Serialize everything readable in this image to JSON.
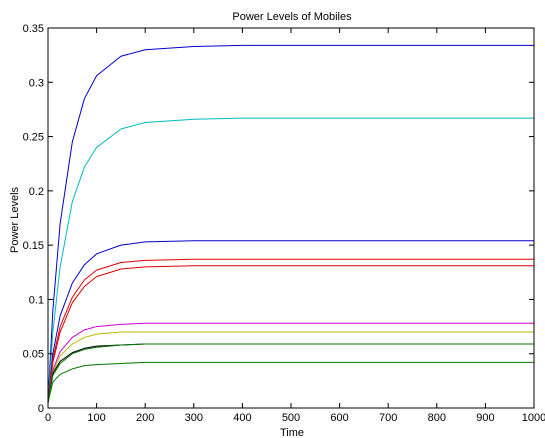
{
  "chart_data": {
    "type": "line",
    "title": "Power Levels of Mobiles",
    "xlabel": "Time",
    "ylabel": "Power Levels",
    "xlim": [
      0,
      1000
    ],
    "ylim": [
      0,
      0.35
    ],
    "grid": false,
    "x_ticks": [
      0,
      100,
      200,
      300,
      400,
      500,
      600,
      700,
      800,
      900,
      1000
    ],
    "x_tick_labels": [
      "0",
      "100",
      "200",
      "300",
      "400",
      "500",
      "600",
      "700",
      "800",
      "900",
      "1000"
    ],
    "y_ticks": [
      0,
      0.05,
      0.1,
      0.15,
      0.2,
      0.25,
      0.3,
      0.35
    ],
    "y_tick_labels": [
      "0",
      "0.05",
      "0.1",
      "0.15",
      "0.2",
      "0.25",
      "0.3",
      "0.35"
    ],
    "series": [
      {
        "color": "#0000cc",
        "x": [
          0,
          10,
          25,
          50,
          75,
          100,
          150,
          200,
          300,
          400,
          500,
          600,
          700,
          800,
          900,
          1000
        ],
        "values": [
          0.005,
          0.09,
          0.17,
          0.245,
          0.285,
          0.306,
          0.324,
          0.33,
          0.333,
          0.334,
          0.334,
          0.334,
          0.334,
          0.334,
          0.334,
          0.334
        ]
      },
      {
        "color": "#00bbbb",
        "x": [
          0,
          10,
          25,
          50,
          75,
          100,
          150,
          200,
          300,
          400,
          500,
          600,
          700,
          800,
          900,
          1000
        ],
        "values": [
          0.005,
          0.07,
          0.13,
          0.19,
          0.222,
          0.24,
          0.257,
          0.263,
          0.266,
          0.267,
          0.267,
          0.267,
          0.267,
          0.267,
          0.267,
          0.267
        ]
      },
      {
        "color": "#0000cc",
        "x": [
          0,
          10,
          25,
          50,
          75,
          100,
          150,
          200,
          300,
          400,
          500,
          600,
          700,
          800,
          900,
          1000
        ],
        "values": [
          0.005,
          0.05,
          0.085,
          0.115,
          0.132,
          0.142,
          0.15,
          0.153,
          0.154,
          0.154,
          0.154,
          0.154,
          0.154,
          0.154,
          0.154,
          0.154
        ]
      },
      {
        "color": "#dd0000",
        "x": [
          0,
          10,
          25,
          50,
          75,
          100,
          150,
          200,
          300,
          400,
          500,
          600,
          700,
          800,
          900,
          1000
        ],
        "values": [
          0.005,
          0.045,
          0.075,
          0.102,
          0.118,
          0.127,
          0.134,
          0.136,
          0.137,
          0.137,
          0.137,
          0.137,
          0.137,
          0.137,
          0.137,
          0.137
        ]
      },
      {
        "color": "#dd0000",
        "x": [
          0,
          10,
          25,
          50,
          75,
          100,
          150,
          200,
          300,
          400,
          500,
          600,
          700,
          800,
          900,
          1000
        ],
        "values": [
          0.005,
          0.042,
          0.07,
          0.097,
          0.112,
          0.121,
          0.128,
          0.13,
          0.131,
          0.131,
          0.131,
          0.131,
          0.131,
          0.131,
          0.131,
          0.131
        ]
      },
      {
        "color": "#cc00cc",
        "x": [
          0,
          10,
          25,
          50,
          75,
          100,
          150,
          200,
          300,
          400,
          500,
          600,
          700,
          800,
          900,
          1000
        ],
        "values": [
          0.005,
          0.035,
          0.052,
          0.065,
          0.072,
          0.075,
          0.077,
          0.078,
          0.078,
          0.078,
          0.078,
          0.078,
          0.078,
          0.078,
          0.078,
          0.078
        ]
      },
      {
        "color": "#bbbb00",
        "x": [
          0,
          10,
          25,
          50,
          75,
          100,
          150,
          200,
          300,
          400,
          500,
          600,
          700,
          800,
          900,
          1000
        ],
        "values": [
          0.005,
          0.033,
          0.048,
          0.059,
          0.065,
          0.068,
          0.07,
          0.07,
          0.07,
          0.07,
          0.07,
          0.07,
          0.07,
          0.07,
          0.07,
          0.07
        ]
      },
      {
        "color": "#000000",
        "x": [
          0,
          10,
          25,
          50,
          75,
          100,
          150,
          200,
          300,
          400,
          500,
          600,
          700,
          800,
          900,
          1000
        ],
        "values": [
          0.005,
          0.032,
          0.043,
          0.051,
          0.055,
          0.057,
          0.058,
          0.059,
          0.059,
          0.059,
          0.059,
          0.059,
          0.059,
          0.059,
          0.059,
          0.059
        ]
      },
      {
        "color": "#007700",
        "x": [
          0,
          10,
          25,
          50,
          75,
          100,
          150,
          200,
          300,
          400,
          500,
          600,
          700,
          800,
          900,
          1000
        ],
        "values": [
          0.005,
          0.03,
          0.041,
          0.05,
          0.054,
          0.056,
          0.058,
          0.059,
          0.059,
          0.059,
          0.059,
          0.059,
          0.059,
          0.059,
          0.059,
          0.059
        ]
      },
      {
        "color": "#007700",
        "x": [
          0,
          10,
          25,
          50,
          75,
          100,
          150,
          200,
          300,
          400,
          500,
          600,
          700,
          800,
          900,
          1000
        ],
        "values": [
          0.005,
          0.024,
          0.031,
          0.036,
          0.039,
          0.04,
          0.041,
          0.042,
          0.042,
          0.042,
          0.042,
          0.042,
          0.042,
          0.042,
          0.042,
          0.042
        ]
      }
    ]
  }
}
